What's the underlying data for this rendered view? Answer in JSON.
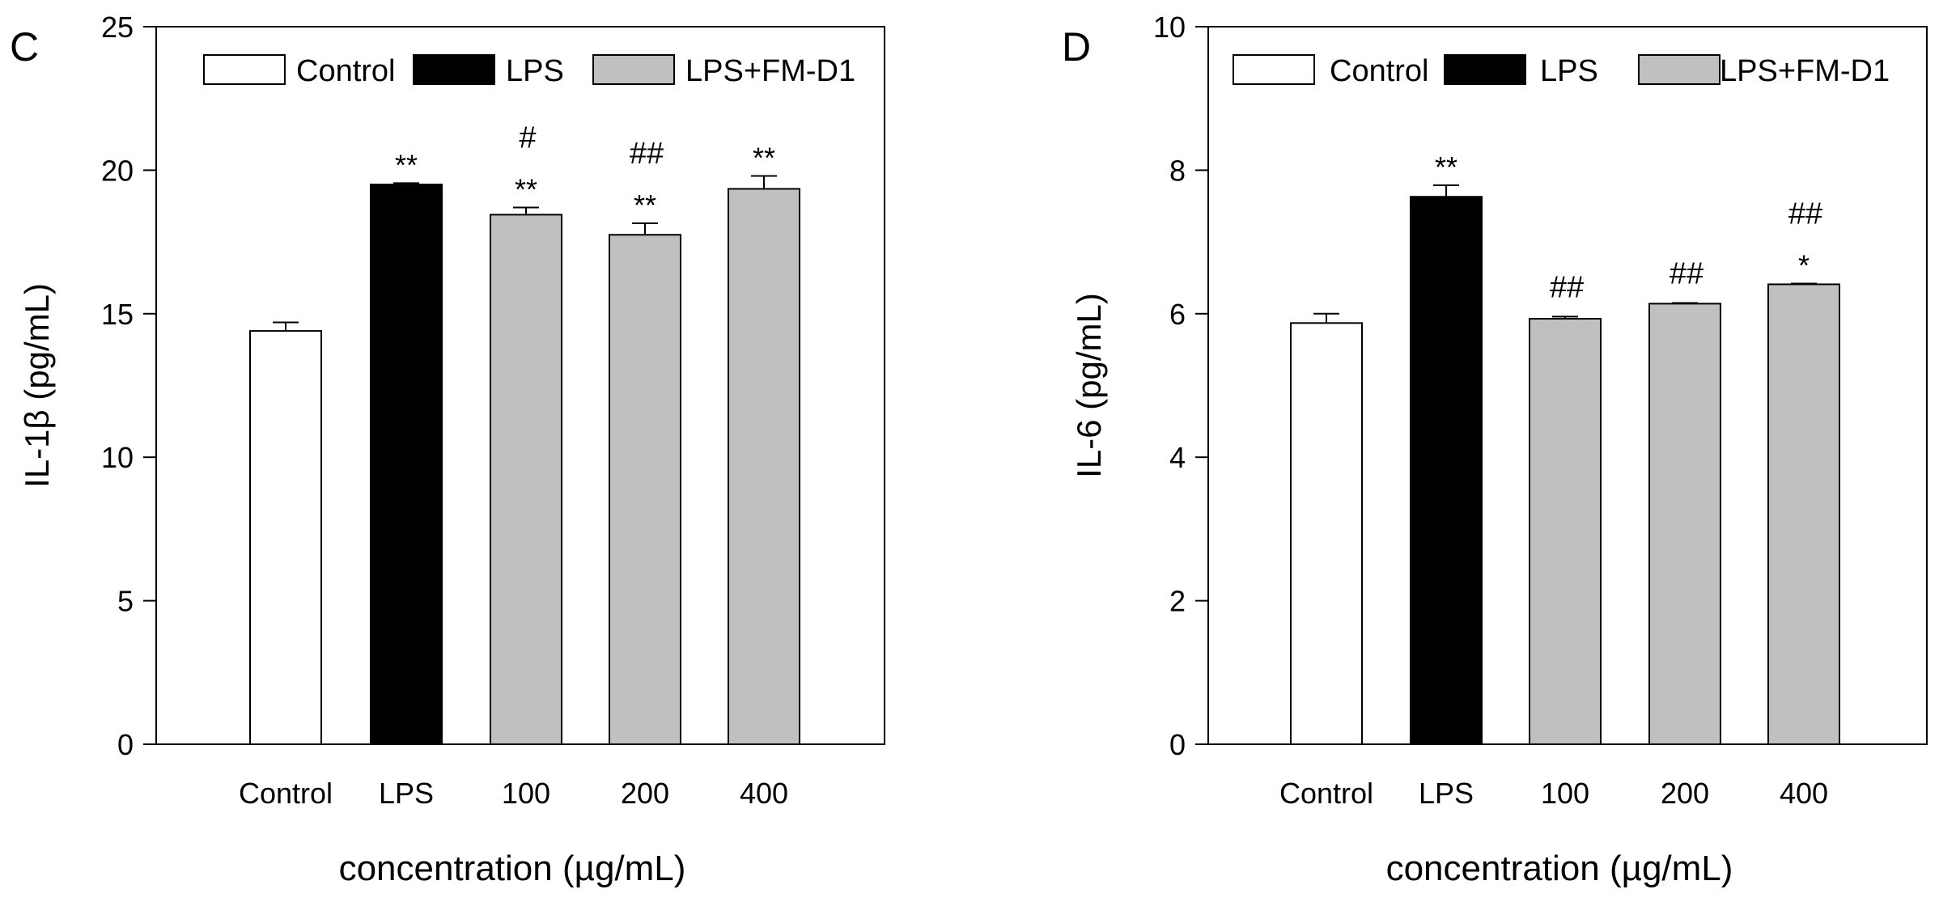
{
  "chart_data": [
    {
      "panel_label": "C",
      "type": "bar",
      "title": "",
      "xlabel": "concentration (µg/mL)",
      "ylabel": "IL-1β (pg/mL)",
      "ylim": [
        0,
        25
      ],
      "yticks": [
        "0",
        "5",
        "10",
        "15",
        "20",
        "25"
      ],
      "categories": [
        "Control",
        "LPS",
        "100",
        "200",
        "400"
      ],
      "values": [
        14.4,
        19.5,
        18.45,
        17.75,
        19.35
      ],
      "errors": [
        0.3,
        0.05,
        0.25,
        0.4,
        0.45
      ],
      "groups": [
        "Control",
        "LPS",
        "LPS+FM-D1",
        "LPS+FM-D1",
        "LPS+FM-D1"
      ],
      "annotations": [
        [],
        [
          "**"
        ],
        [
          "**",
          "#"
        ],
        [
          "**",
          "##"
        ],
        [
          "**"
        ]
      ],
      "legend": [
        {
          "label": "Control",
          "color": "#ffffff"
        },
        {
          "label": "LPS",
          "color": "#000000"
        },
        {
          "label": "LPS+FM-D1",
          "color": "#c0c0c0"
        }
      ],
      "legend_position": "top"
    },
    {
      "panel_label": "D",
      "type": "bar",
      "title": "",
      "xlabel": "concentration (µg/mL)",
      "ylabel": "IL-6 (pg/mL)",
      "ylim": [
        0,
        10
      ],
      "yticks": [
        "0",
        "2",
        "4",
        "6",
        "8",
        "10"
      ],
      "categories": [
        "Control",
        "LPS",
        "100",
        "200",
        "400"
      ],
      "values": [
        5.87,
        7.63,
        5.93,
        6.14,
        6.41
      ],
      "errors": [
        0.13,
        0.16,
        0.03,
        0.01,
        0.01
      ],
      "groups": [
        "Control",
        "LPS",
        "LPS+FM-D1",
        "LPS+FM-D1",
        "LPS+FM-D1"
      ],
      "annotations": [
        [],
        [
          "**"
        ],
        [
          "##"
        ],
        [
          "##"
        ],
        [
          "*",
          "##"
        ]
      ],
      "legend": [
        {
          "label": "Control",
          "color": "#ffffff"
        },
        {
          "label": "LPS",
          "color": "#000000"
        },
        {
          "label": "LPS+FM-D1",
          "color": "#c0c0c0"
        }
      ],
      "legend_position": "top"
    }
  ]
}
